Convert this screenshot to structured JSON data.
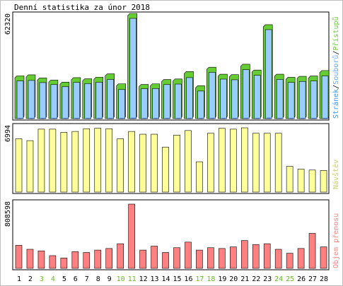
{
  "title": "Denní statistika za únor 2018",
  "colors": {
    "hits": "#66cc33",
    "files": "#3399ff",
    "files_fill": "#99ccff",
    "visitors": "#cccc66",
    "visitors_fill": "#ffff99",
    "volume": "#cc3333",
    "volume_fill": "#ff8080",
    "weekend": "#66bb22",
    "panel_border": "#000000"
  },
  "chart_data": [
    {
      "type": "bar",
      "panel": "top",
      "ylabel": "62320",
      "legend": [
        "Přístupů",
        "Souborů",
        "Stránek"
      ],
      "legend_separator": "/",
      "categories": [
        "1",
        "2",
        "3",
        "4",
        "5",
        "6",
        "7",
        "8",
        "9",
        "10",
        "11",
        "12",
        "13",
        "14",
        "15",
        "16",
        "17",
        "18",
        "19",
        "20",
        "21",
        "22",
        "23",
        "24",
        "25",
        "26",
        "27",
        "28"
      ],
      "weekend_days": [
        "3",
        "4",
        "10",
        "11",
        "17",
        "18",
        "24",
        "25"
      ],
      "ylim": [
        0,
        62320
      ],
      "series": [
        {
          "name": "Přístupů",
          "values": [
            24600,
            25200,
            23300,
            22000,
            20800,
            23500,
            22800,
            23800,
            25800,
            19800,
            62320,
            19400,
            19800,
            22400,
            22700,
            27200,
            18600,
            29800,
            25600,
            25300,
            31600,
            28100,
            55500,
            25600,
            23700,
            24300,
            24500,
            27800
          ]
        },
        {
          "name": "Souborů",
          "values": [
            22800,
            23100,
            21800,
            20600,
            19300,
            21900,
            21200,
            22000,
            23700,
            17600,
            60600,
            18100,
            18200,
            20600,
            20900,
            24800,
            16700,
            28000,
            23900,
            23500,
            29600,
            26200,
            53800,
            23700,
            21900,
            22500,
            22800,
            25800
          ]
        },
        {
          "name": "Stránek",
          "values": [
            400,
            420,
            380,
            350,
            330,
            360,
            350,
            370,
            390,
            300,
            520,
            310,
            320,
            350,
            350,
            400,
            290,
            440,
            400,
            390,
            460,
            420,
            560,
            390,
            360,
            380,
            380,
            420
          ]
        }
      ]
    },
    {
      "type": "bar",
      "panel": "middle",
      "ylabel": "6994",
      "legend": [
        "Návštěv"
      ],
      "categories": [
        "1",
        "2",
        "3",
        "4",
        "5",
        "6",
        "7",
        "8",
        "9",
        "10",
        "11",
        "12",
        "13",
        "14",
        "15",
        "16",
        "17",
        "18",
        "19",
        "20",
        "21",
        "22",
        "23",
        "24",
        "25",
        "26",
        "27",
        "28"
      ],
      "ylim": [
        0,
        6994
      ],
      "series": [
        {
          "name": "Návštěv",
          "values": [
            5800,
            5600,
            6850,
            6850,
            6500,
            6600,
            6900,
            6950,
            6900,
            5800,
            6600,
            6300,
            6300,
            4900,
            6200,
            6700,
            3300,
            6400,
            6950,
            6850,
            6994,
            6400,
            6400,
            6400,
            2800,
            2500,
            2400,
            2350
          ]
        }
      ]
    },
    {
      "type": "bar",
      "panel": "bottom",
      "ylabel": "808598",
      "legend": [
        "Objem přenosu"
      ],
      "categories": [
        "1",
        "2",
        "3",
        "4",
        "5",
        "6",
        "7",
        "8",
        "9",
        "10",
        "11",
        "12",
        "13",
        "14",
        "15",
        "16",
        "17",
        "18",
        "19",
        "20",
        "21",
        "22",
        "23",
        "24",
        "25",
        "26",
        "27",
        "28"
      ],
      "ylim": [
        0,
        808598
      ],
      "series": [
        {
          "name": "Objem přenosu",
          "values": [
            290000,
            240000,
            220000,
            160000,
            130000,
            210000,
            200000,
            230000,
            250000,
            310000,
            808598,
            230000,
            280000,
            200000,
            260000,
            330000,
            230000,
            260000,
            250000,
            270000,
            350000,
            300000,
            310000,
            240000,
            190000,
            250000,
            440000,
            270000
          ]
        }
      ]
    }
  ]
}
